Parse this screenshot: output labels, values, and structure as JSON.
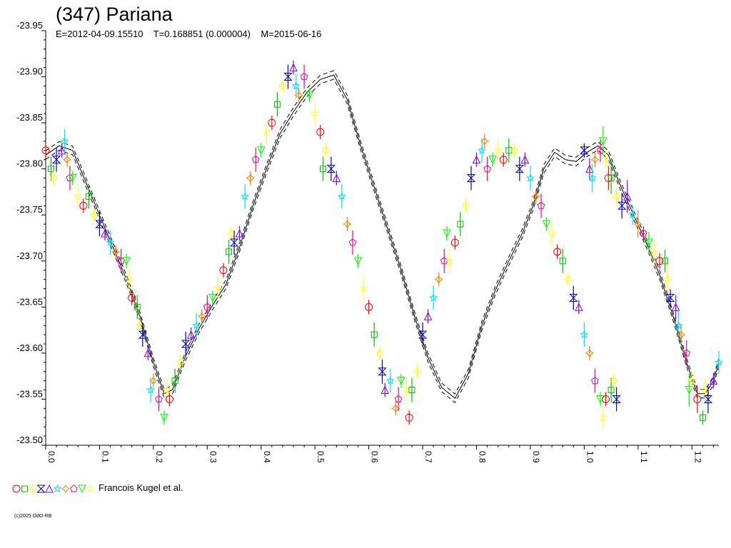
{
  "header": {
    "title": "(347) Pariana",
    "subtitle": "E=2012-04-09.15510    T=0.168851 (0.000004)    M=2015-06-16"
  },
  "legend": {
    "label": "Francois Kugel et al."
  },
  "footer": {
    "copyright": "(c)2025 OdO-RB"
  },
  "colors": {
    "axis": "#000000",
    "markers": [
      "#ff0000",
      "#00c000",
      "#ffff00",
      "#0000c0",
      "#8000ff",
      "#00e0ff",
      "#ff8000",
      "#ff0080",
      "#00ff00",
      "#ffff40"
    ]
  },
  "chart_data": {
    "type": "scatter",
    "title": "(347) Pariana",
    "xlabel": "",
    "ylabel": "",
    "xlim": [
      0.0,
      1.25
    ],
    "ylim": [
      -23.95,
      -23.5
    ],
    "y_reversed": true,
    "x_ticks": [
      "0.0",
      "0.1",
      "0.2",
      "0.3",
      "0.4",
      "0.5",
      "0.6",
      "0.7",
      "0.8",
      "0.9",
      "1.0",
      "1.1",
      "1.2"
    ],
    "y_ticks": [
      "-23.95",
      "-23.90",
      "-23.85",
      "-23.80",
      "-23.75",
      "-23.70",
      "-23.65",
      "-23.60",
      "-23.55",
      "-23.50"
    ],
    "series": [
      {
        "name": "Francois Kugel et al.",
        "points": [
          [
            0.0,
            -23.82
          ],
          [
            0.01,
            -23.8
          ],
          [
            0.015,
            -23.79
          ],
          [
            0.02,
            -23.81
          ],
          [
            0.03,
            -23.82
          ],
          [
            0.035,
            -23.83
          ],
          [
            0.04,
            -23.81
          ],
          [
            0.045,
            -23.79
          ],
          [
            0.05,
            -23.79
          ],
          [
            0.06,
            -23.77
          ],
          [
            0.07,
            -23.76
          ],
          [
            0.08,
            -23.77
          ],
          [
            0.09,
            -23.75
          ],
          [
            0.1,
            -23.74
          ],
          [
            0.11,
            -23.73
          ],
          [
            0.12,
            -23.72
          ],
          [
            0.13,
            -23.71
          ],
          [
            0.14,
            -23.7
          ],
          [
            0.15,
            -23.7
          ],
          [
            0.155,
            -23.68
          ],
          [
            0.16,
            -23.66
          ],
          [
            0.17,
            -23.65
          ],
          [
            0.175,
            -23.63
          ],
          [
            0.18,
            -23.62
          ],
          [
            0.19,
            -23.6
          ],
          [
            0.195,
            -23.56
          ],
          [
            0.2,
            -23.57
          ],
          [
            0.21,
            -23.55
          ],
          [
            0.22,
            -23.53
          ],
          [
            0.225,
            -23.56
          ],
          [
            0.23,
            -23.55
          ],
          [
            0.24,
            -23.57
          ],
          [
            0.25,
            -23.59
          ],
          [
            0.26,
            -23.61
          ],
          [
            0.27,
            -23.62
          ],
          [
            0.28,
            -23.63
          ],
          [
            0.29,
            -23.64
          ],
          [
            0.3,
            -23.65
          ],
          [
            0.31,
            -23.66
          ],
          [
            0.32,
            -23.67
          ],
          [
            0.33,
            -23.69
          ],
          [
            0.34,
            -23.71
          ],
          [
            0.345,
            -23.73
          ],
          [
            0.35,
            -23.72
          ],
          [
            0.36,
            -23.73
          ],
          [
            0.37,
            -23.77
          ],
          [
            0.38,
            -23.79
          ],
          [
            0.39,
            -23.81
          ],
          [
            0.4,
            -23.82
          ],
          [
            0.41,
            -23.84
          ],
          [
            0.42,
            -23.85
          ],
          [
            0.43,
            -23.87
          ],
          [
            0.44,
            -23.89
          ],
          [
            0.45,
            -23.9
          ],
          [
            0.46,
            -23.91
          ],
          [
            0.465,
            -23.89
          ],
          [
            0.47,
            -23.88
          ],
          [
            0.48,
            -23.9
          ],
          [
            0.49,
            -23.88
          ],
          [
            0.5,
            -23.86
          ],
          [
            0.51,
            -23.84
          ],
          [
            0.515,
            -23.8
          ],
          [
            0.52,
            -23.82
          ],
          [
            0.53,
            -23.8
          ],
          [
            0.54,
            -23.79
          ],
          [
            0.55,
            -23.77
          ],
          [
            0.56,
            -23.74
          ],
          [
            0.57,
            -23.72
          ],
          [
            0.58,
            -23.7
          ],
          [
            0.59,
            -23.67
          ],
          [
            0.6,
            -23.65
          ],
          [
            0.61,
            -23.62
          ],
          [
            0.62,
            -23.6
          ],
          [
            0.625,
            -23.58
          ],
          [
            0.63,
            -23.56
          ],
          [
            0.64,
            -23.57
          ],
          [
            0.65,
            -23.54
          ],
          [
            0.655,
            -23.55
          ],
          [
            0.66,
            -23.57
          ],
          [
            0.67,
            -23.56
          ],
          [
            0.675,
            -23.53
          ],
          [
            0.68,
            -23.56
          ],
          [
            0.69,
            -23.58
          ],
          [
            0.7,
            -23.62
          ],
          [
            0.71,
            -23.64
          ],
          [
            0.72,
            -23.66
          ],
          [
            0.73,
            -23.68
          ],
          [
            0.74,
            -23.7
          ],
          [
            0.745,
            -23.73
          ],
          [
            0.75,
            -23.7
          ],
          [
            0.76,
            -23.72
          ],
          [
            0.77,
            -23.74
          ],
          [
            0.78,
            -23.76
          ],
          [
            0.79,
            -23.79
          ],
          [
            0.8,
            -23.81
          ],
          [
            0.81,
            -23.82
          ],
          [
            0.815,
            -23.83
          ],
          [
            0.82,
            -23.8
          ],
          [
            0.83,
            -23.81
          ],
          [
            0.84,
            -23.82
          ],
          [
            0.85,
            -23.81
          ],
          [
            0.86,
            -23.82
          ],
          [
            0.87,
            -23.82
          ],
          [
            0.88,
            -23.8
          ],
          [
            0.89,
            -23.81
          ],
          [
            0.9,
            -23.79
          ],
          [
            0.91,
            -23.77
          ],
          [
            0.92,
            -23.76
          ],
          [
            0.93,
            -23.74
          ],
          [
            0.94,
            -23.73
          ],
          [
            0.95,
            -23.71
          ],
          [
            0.96,
            -23.7
          ],
          [
            0.97,
            -23.68
          ],
          [
            0.98,
            -23.66
          ],
          [
            0.99,
            -23.65
          ],
          [
            1.0,
            -23.62
          ],
          [
            1.01,
            -23.6
          ],
          [
            1.02,
            -23.57
          ],
          [
            1.03,
            -23.55
          ],
          [
            1.035,
            -23.53
          ],
          [
            1.04,
            -23.55
          ],
          [
            1.05,
            -23.56
          ],
          [
            1.055,
            -23.57
          ],
          [
            1.06,
            -23.55
          ]
        ]
      }
    ],
    "fit_curve": {
      "style": "solid",
      "band_style": "dashed",
      "points": [
        [
          0.0,
          -23.815
        ],
        [
          0.025,
          -23.825
        ],
        [
          0.05,
          -23.82
        ],
        [
          0.075,
          -23.785
        ],
        [
          0.1,
          -23.75
        ],
        [
          0.125,
          -23.715
        ],
        [
          0.15,
          -23.68
        ],
        [
          0.175,
          -23.64
        ],
        [
          0.2,
          -23.59
        ],
        [
          0.22,
          -23.556
        ],
        [
          0.235,
          -23.56
        ],
        [
          0.26,
          -23.597
        ],
        [
          0.285,
          -23.627
        ],
        [
          0.31,
          -23.652
        ],
        [
          0.335,
          -23.675
        ],
        [
          0.36,
          -23.715
        ],
        [
          0.385,
          -23.76
        ],
        [
          0.41,
          -23.8
        ],
        [
          0.435,
          -23.838
        ],
        [
          0.46,
          -23.862
        ],
        [
          0.485,
          -23.883
        ],
        [
          0.51,
          -23.897
        ],
        [
          0.535,
          -23.902
        ],
        [
          0.56,
          -23.875
        ],
        [
          0.585,
          -23.825
        ],
        [
          0.61,
          -23.78
        ],
        [
          0.635,
          -23.735
        ],
        [
          0.66,
          -23.69
        ],
        [
          0.685,
          -23.64
        ],
        [
          0.71,
          -23.595
        ],
        [
          0.735,
          -23.563
        ],
        [
          0.76,
          -23.551
        ],
        [
          0.785,
          -23.578
        ],
        [
          0.81,
          -23.63
        ],
        [
          0.835,
          -23.668
        ],
        [
          0.86,
          -23.7
        ],
        [
          0.885,
          -23.73
        ],
        [
          0.905,
          -23.76
        ],
        [
          0.925,
          -23.8
        ],
        [
          0.945,
          -23.818
        ],
        [
          0.965,
          -23.81
        ],
        [
          0.985,
          -23.808
        ],
        [
          1.005,
          -23.818
        ],
        [
          1.025,
          -23.825
        ],
        [
          1.045,
          -23.815
        ],
        [
          1.065,
          -23.785
        ],
        [
          1.09,
          -23.752
        ],
        [
          1.115,
          -23.72
        ],
        [
          1.14,
          -23.685
        ],
        [
          1.165,
          -23.64
        ],
        [
          1.19,
          -23.59
        ],
        [
          1.21,
          -23.556
        ],
        [
          1.225,
          -23.556
        ],
        [
          1.24,
          -23.57
        ],
        [
          1.25,
          -23.59
        ]
      ]
    }
  }
}
